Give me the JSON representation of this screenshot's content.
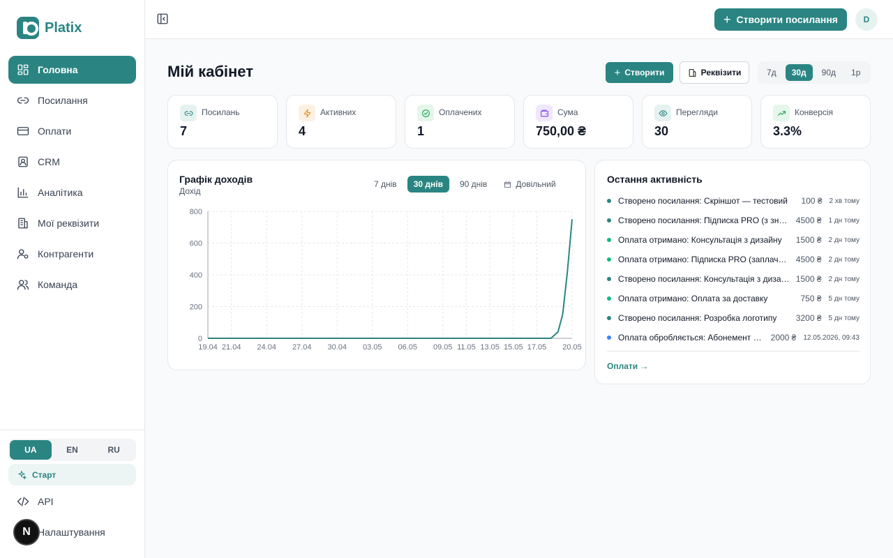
{
  "app": {
    "name": "Platix"
  },
  "nav": [
    {
      "label": "Головна",
      "icon": "dashboard-icon",
      "active": true
    },
    {
      "label": "Посилання",
      "icon": "link-icon"
    },
    {
      "label": "Оплати",
      "icon": "card-icon"
    },
    {
      "label": "CRM",
      "icon": "contact-icon"
    },
    {
      "label": "Аналітика",
      "icon": "bar-chart-icon"
    },
    {
      "label": "Мої реквізити",
      "icon": "building-icon"
    },
    {
      "label": "Контрагенти",
      "icon": "user-gear-icon"
    },
    {
      "label": "Команда",
      "icon": "team-icon"
    }
  ],
  "languages": [
    "UA",
    "EN",
    "RU"
  ],
  "active_language": "UA",
  "start_label": "Старт",
  "bottom_nav": {
    "api": "API",
    "settings": "Налаштування",
    "badge": "N"
  },
  "topbar": {
    "create_link": "Створити посилання",
    "avatar": "D"
  },
  "page": {
    "title": "Мій кабінет",
    "create": "Створити",
    "requisites": "Реквізити",
    "periods": [
      "7д",
      "30д",
      "90д",
      "1р"
    ],
    "active_period": "30д"
  },
  "stats": [
    {
      "label": "Посилань",
      "value": "7",
      "icon": "link-icon",
      "color": "#2a8582",
      "bg": "#e6f2f0"
    },
    {
      "label": "Активних",
      "value": "4",
      "icon": "bolt-icon",
      "color": "#ea8a1c",
      "bg": "#fdf1e3"
    },
    {
      "label": "Оплачених",
      "value": "1",
      "icon": "check-circle-icon",
      "color": "#16a34a",
      "bg": "#e5f6ea"
    },
    {
      "label": "Сума",
      "value": "750,00 ₴",
      "icon": "wallet-icon",
      "color": "#7c3aed",
      "bg": "#efe8fd"
    },
    {
      "label": "Перегляди",
      "value": "30",
      "icon": "eye-icon",
      "color": "#2a8582",
      "bg": "#e6f2f0"
    },
    {
      "label": "Конверсія",
      "value": "3.3%",
      "icon": "trend-up-icon",
      "color": "#16a34a",
      "bg": "#e5f6ea"
    }
  ],
  "chart_card": {
    "title": "Графік доходів",
    "subtitle": "Дохід",
    "tabs": [
      "7 днів",
      "30 днів",
      "90 днів"
    ],
    "active_tab": "30 днів",
    "custom": "Довільний"
  },
  "chart_data": {
    "type": "area",
    "ylabel": "",
    "xlabel": "",
    "ylim": [
      0,
      800
    ],
    "yticks": [
      0,
      200,
      400,
      600,
      800
    ],
    "x_tick_labels": [
      "19.04",
      "21.04",
      "24.04",
      "27.04",
      "30.04",
      "03.05",
      "06.05",
      "09.05",
      "11.05",
      "13.05",
      "15.05",
      "17.05",
      "20.05"
    ],
    "x_tick_days": [
      0,
      2,
      5,
      8,
      11,
      14,
      17,
      20,
      22,
      24,
      26,
      28,
      31
    ],
    "series": [
      {
        "points": [
          [
            0,
            0
          ],
          [
            28,
            0
          ],
          [
            29.2,
            0
          ],
          [
            29.8,
            40
          ],
          [
            30.2,
            150
          ],
          [
            30.6,
            420
          ],
          [
            31,
            750
          ]
        ]
      }
    ],
    "grid": true,
    "line_color": "#2a8582"
  },
  "activity": {
    "title": "Остання активність",
    "items": [
      {
        "text": "Створено посилання: Скріншот — тестовий",
        "amount": "100 ₴",
        "time": "2 хв тому",
        "color": "#2a8582"
      },
      {
        "text": "Створено посилання: Підписка PRO (з знижкою)",
        "amount": "4500 ₴",
        "time": "1 дн тому",
        "color": "#2a8582"
      },
      {
        "text": "Оплата отримано: Консультація з дизайну",
        "amount": "1500 ₴",
        "time": "2 дн тому",
        "color": "#10b981"
      },
      {
        "text": "Оплата отримано: Підписка PRO (заплачено)",
        "amount": "4500 ₴",
        "time": "2 дн тому",
        "color": "#10b981"
      },
      {
        "text": "Створено посилання: Консультація з дизайну",
        "amount": "1500 ₴",
        "time": "2 дн тому",
        "color": "#2a8582"
      },
      {
        "text": "Оплата отримано: Оплата за доставку",
        "amount": "750 ₴",
        "time": "5 дн тому",
        "color": "#10b981"
      },
      {
        "text": "Створено посилання: Розробка логотипу",
        "amount": "3200 ₴",
        "time": "5 дн тому",
        "color": "#2a8582"
      },
      {
        "text": "Оплата обробляється: Абонемент на місяць",
        "amount": "2000 ₴",
        "time": "12.05.2026, 09:43",
        "color": "#3b82f6"
      }
    ],
    "link": "Оплати →"
  }
}
